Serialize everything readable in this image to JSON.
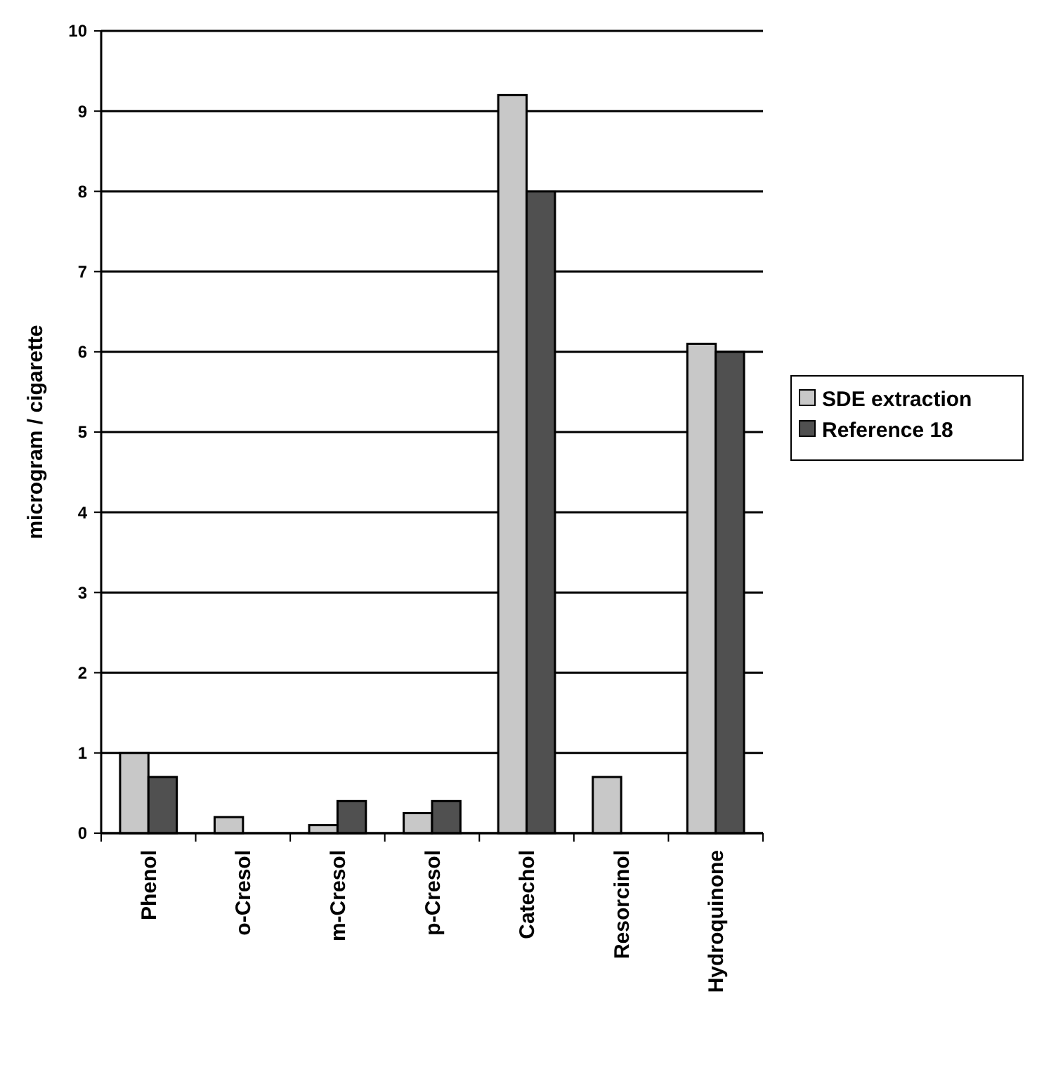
{
  "chart_data": {
    "type": "bar",
    "ylabel": "microgram / cigarette",
    "categories": [
      "Phenol",
      "o-Cresol",
      "m-Cresol",
      "p-Cresol",
      "Catechol",
      "Resorcinol",
      "Hydroquinone"
    ],
    "series": [
      {
        "name": "SDE extraction",
        "color": "#c8c8c8",
        "values": [
          1.0,
          0.2,
          0.1,
          0.25,
          9.2,
          0.7,
          6.1
        ]
      },
      {
        "name": "Reference 18",
        "color": "#505050",
        "values": [
          0.7,
          null,
          0.4,
          0.4,
          8.0,
          null,
          6.0
        ]
      }
    ],
    "ylim": [
      0,
      10
    ],
    "yticks": [
      0,
      1,
      2,
      3,
      4,
      5,
      6,
      7,
      8,
      9,
      10
    ],
    "grid": "y",
    "legend": "right"
  }
}
